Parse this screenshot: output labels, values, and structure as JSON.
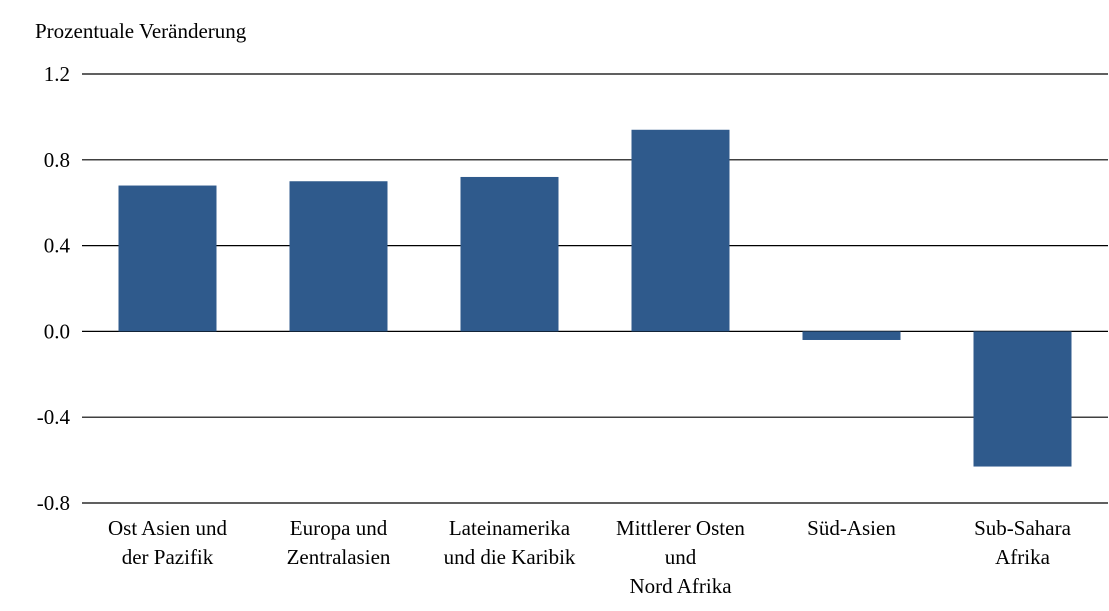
{
  "chart_data": {
    "type": "bar",
    "title": "",
    "xlabel": "",
    "ylabel": "Prozentuale Veränderung",
    "categories": [
      [
        "Ost Asien und",
        "der Pazifik"
      ],
      [
        "Europa und",
        "Zentralasien"
      ],
      [
        "Lateinamerika",
        "und die Karibik"
      ],
      [
        "Mittlerer Osten",
        "und",
        "Nord Afrika"
      ],
      [
        "Süd-Asien"
      ],
      [
        "Sub-Sahara",
        "Afrika"
      ]
    ],
    "values": [
      0.68,
      0.7,
      0.72,
      0.94,
      -0.04,
      -0.63
    ],
    "ylim": [
      -0.8,
      1.2
    ],
    "yticks": [
      "1.2",
      "0.8",
      "0.4",
      "0.0",
      "-0.4",
      "-0.8"
    ],
    "ytick_values": [
      1.2,
      0.8,
      0.4,
      0.0,
      -0.4,
      -0.8
    ],
    "grid": true,
    "bar_color": "#2f5a8c",
    "grid_color": "#000000"
  }
}
